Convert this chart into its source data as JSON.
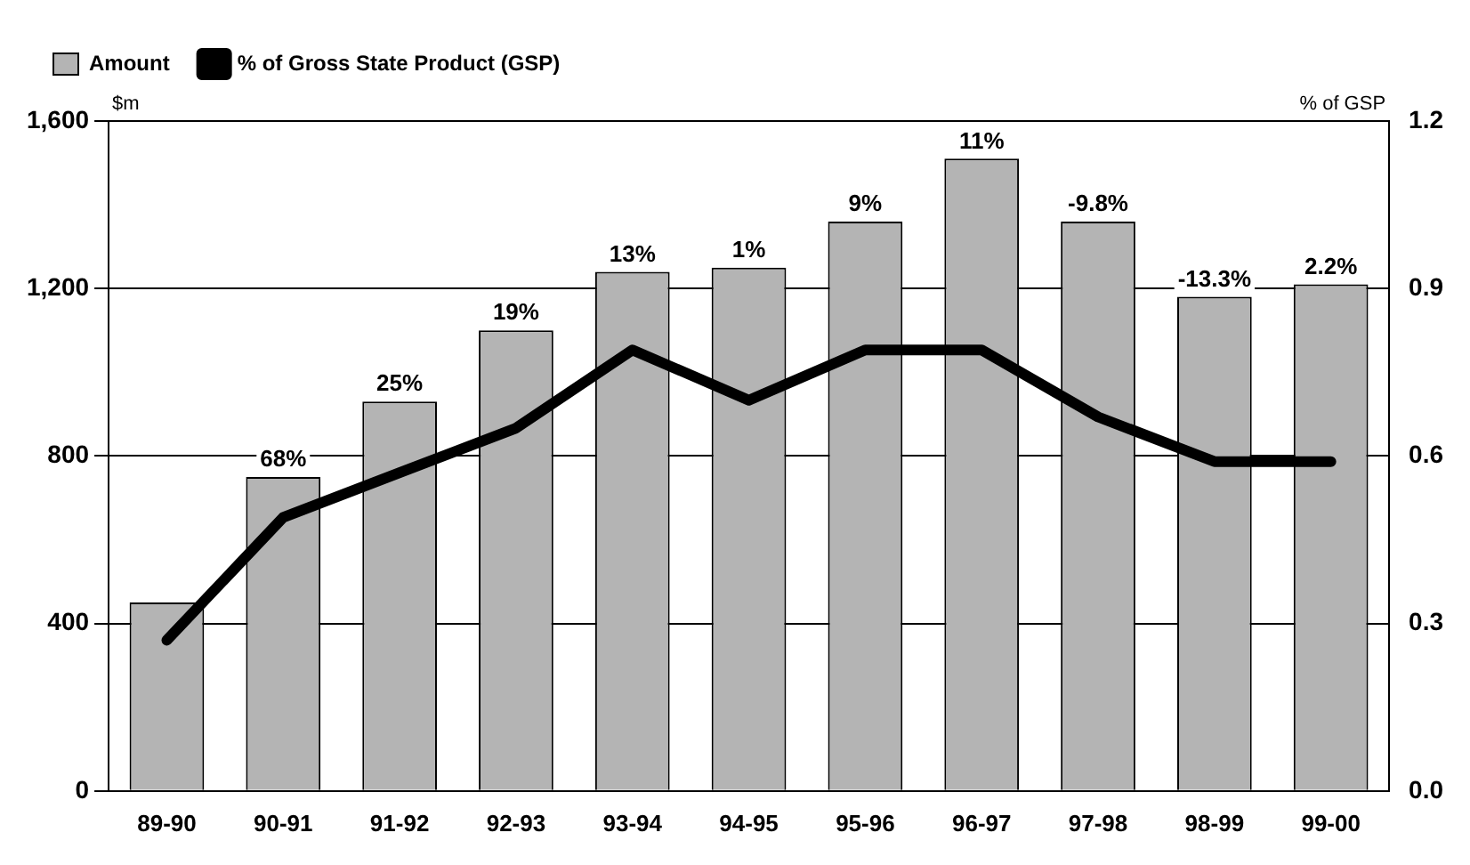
{
  "chart_data": {
    "type": "bar",
    "ylabel": "$m",
    "y2label": "% of GSP",
    "categories": [
      "89-90",
      "90-91",
      "91-92",
      "92-93",
      "93-94",
      "94-95",
      "95-96",
      "96-97",
      "97-98",
      "98-99",
      "99-00"
    ],
    "series": [
      {
        "name": "Amount",
        "color": "#b4b4b4",
        "values": [
          450,
          750,
          930,
          1100,
          1240,
          1250,
          1360,
          1510,
          1360,
          1180,
          1210
        ]
      },
      {
        "name": "% of Gross State Product (GSP)",
        "type": "line",
        "axis": "y2",
        "color": "#000000",
        "values": [
          0.27,
          0.49,
          0.57,
          0.65,
          0.79,
          0.7,
          0.79,
          0.79,
          0.67,
          0.59,
          0.59
        ]
      }
    ],
    "ylim": [
      0,
      1600
    ],
    "yticks": [
      {
        "value": 0,
        "label": "0"
      },
      {
        "value": 400,
        "label": "400"
      },
      {
        "value": 800,
        "label": "800"
      },
      {
        "value": 1200,
        "label": "1,200"
      },
      {
        "value": 1600,
        "label": "1,600"
      }
    ],
    "y2lim": [
      0,
      1.2
    ],
    "y2ticks": [
      {
        "value": 0,
        "label": "0.0"
      },
      0.3,
      0.6,
      0.9,
      1.2
    ],
    "annotations": [
      {
        "text": "68%",
        "x": "90-91",
        "y": 750
      },
      {
        "text": "25%",
        "x": "91-92",
        "y": 930
      },
      {
        "text": "19%",
        "x": "92-93",
        "y": 1100
      },
      {
        "text": "13%",
        "x": "93-94",
        "y": 1240
      },
      {
        "text": "1%",
        "x": "94-95",
        "y": 1250
      },
      {
        "text": "9%",
        "x": "95-96",
        "y": 1360
      },
      {
        "text": "11%",
        "x": "96-97",
        "y": 1510
      },
      {
        "text": "-9.8%",
        "x": "97-98",
        "y": 1360
      },
      {
        "text": "-13.3%",
        "x": "98-99",
        "y": 1180
      },
      {
        "text": "2.2%",
        "x": "99-00",
        "y": 1210
      }
    ],
    "grid": "y",
    "legend": "top left",
    "marker": "none",
    "line_style": "solid"
  }
}
